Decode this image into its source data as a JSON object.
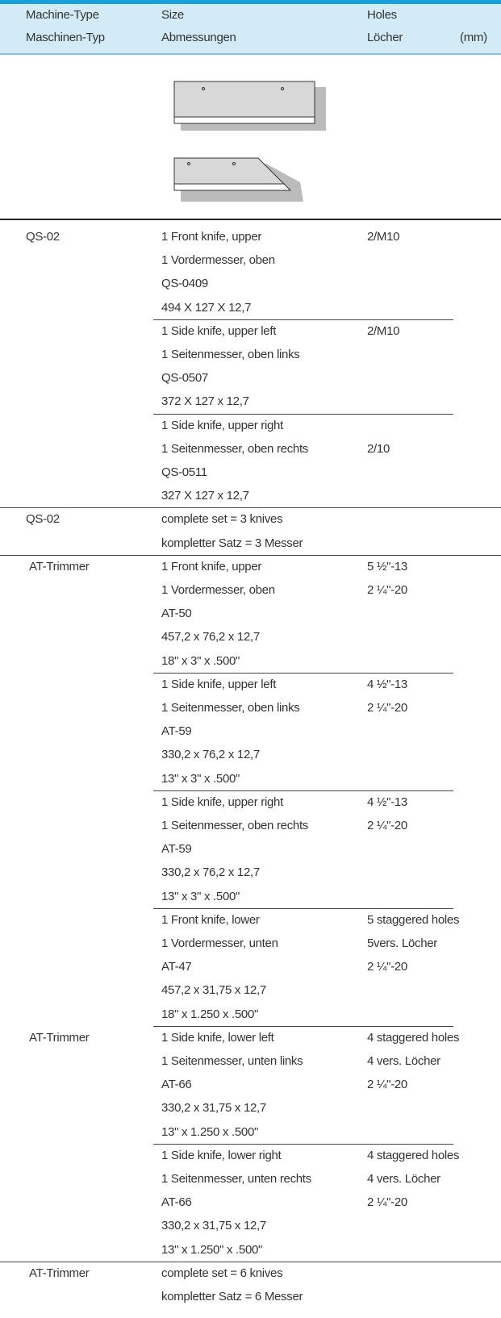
{
  "header": {
    "columns": [
      {
        "en": "Machine-Type",
        "de": "Maschinen-Typ"
      },
      {
        "en": "Size",
        "de": "Abmessungen"
      },
      {
        "en": "Holes",
        "de": "Löcher"
      }
    ],
    "unit": "(mm)"
  },
  "groups": [
    {
      "machine": "QS-02",
      "items": [
        {
          "size": [
            "1 Front knife, upper",
            "1 Vordermesser, oben",
            "QS-0409",
            "494 X 127 X 12,7"
          ],
          "holes": [
            "2/M10"
          ]
        },
        {
          "size": [
            "1 Side knife, upper left",
            "1 Seitenmesser, oben links",
            "QS-0507",
            "372 X 127 x 12,7"
          ],
          "holes": [
            "2/M10"
          ]
        },
        {
          "size": [
            "1 Side knife, upper right",
            "1 Seitenmesser, oben rechts",
            "QS-0511",
            "327 X 127 x 12,7"
          ],
          "holes": [
            "2/10"
          ]
        }
      ]
    },
    {
      "machine": "QS-02",
      "items": [
        {
          "size": [
            "complete set = 3 knives",
            "kompletter Satz = 3 Messer"
          ]
        }
      ]
    },
    {
      "machine": "AT-Trimmer",
      "items": [
        {
          "size": [
            "1 Front knife, upper",
            "1 Vordermesser, oben",
            "AT-50",
            "457,2 x 76,2 x 12,7",
            "18\" x 3\" x .500\""
          ],
          "holes": [
            "5 ½\"-13",
            "2 ¼\"-20"
          ]
        },
        {
          "size": [
            "1 Side knife, upper left",
            "1 Seitenmesser, oben links",
            "AT-59",
            "330,2 x 76,2 x 12,7",
            "13\" x 3\" x .500\""
          ],
          "holes": [
            "4 ½\"-13",
            "2 ¼\"-20"
          ]
        },
        {
          "size": [
            "1 Side knife, upper right",
            "1 Seitenmesser, oben rechts",
            "AT-59",
            "330,2 x 76,2 x 12,7",
            "13\" x 3\" x .500\""
          ],
          "holes": [
            "4 ½\"-13",
            "2 ¼\"-20"
          ]
        },
        {
          "size": [
            "1 Front knife, lower",
            "1 Vordermesser, unten",
            "AT-47",
            "457,2 x 31,75 x 12,7",
            "18\" x 1.250 x .500\""
          ],
          "holes": [
            "5 staggered holes",
            "5vers. Löcher",
            "2 ¼\"-20"
          ]
        }
      ]
    },
    {
      "machine": "AT-Trimmer",
      "items": [
        {
          "size": [
            "1 Side knife, lower left",
            "1 Seitenmesser, unten links",
            "AT-66",
            "330,2 x 31,75 x 12,7",
            "13\" x 1.250 x .500\""
          ],
          "holes": [
            "4 staggered holes",
            "4 vers. Löcher",
            "2 ¼\"-20"
          ]
        },
        {
          "size": [
            "1 Side knife, lower right",
            "1 Seitenmesser, unten rechts",
            "AT-66",
            "330,2 x 31,75 x 12,7",
            "13\" x 1.250\" x .500\""
          ],
          "holes": [
            "4 staggered holes",
            "4 vers. Löcher",
            "2 ¼\"-20"
          ]
        }
      ]
    },
    {
      "machine": "AT-Trimmer",
      "items": [
        {
          "size": [
            "complete set = 6 knives",
            "kompletter Satz = 6 Messer"
          ]
        }
      ]
    }
  ]
}
